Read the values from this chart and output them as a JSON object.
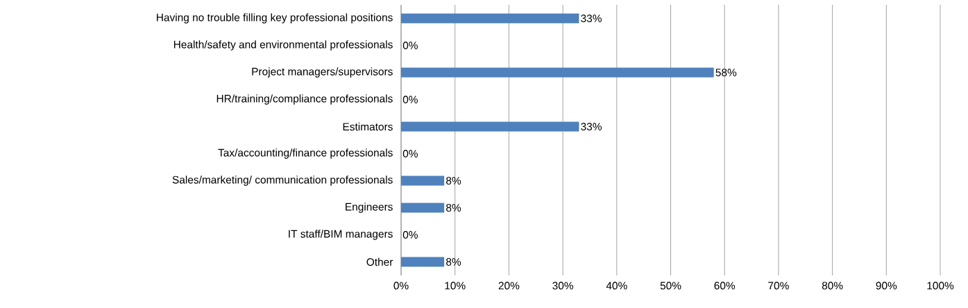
{
  "chart_data": {
    "type": "bar",
    "orientation": "horizontal",
    "categories": [
      "Having no trouble filling key professional positions",
      "Health/safety and environmental professionals",
      "Project managers/supervisors",
      "HR/training/compliance professionals",
      "Estimators",
      "Tax/accounting/finance professionals",
      "Sales/marketing/ communication professionals",
      "Engineers",
      "IT staff/BIM managers",
      "Other"
    ],
    "values": [
      33,
      0,
      58,
      0,
      33,
      0,
      8,
      8,
      0,
      8
    ],
    "value_labels": [
      "33%",
      "0%",
      "58%",
      "0%",
      "33%",
      "0%",
      "8%",
      "8%",
      "0%",
      "8%"
    ],
    "color": "#4f81bd",
    "xlim": [
      0,
      100
    ],
    "xticks": [
      {
        "value": 0,
        "label": "0%"
      },
      {
        "value": 10,
        "label": "10%"
      },
      {
        "value": 20,
        "label": "20%"
      },
      {
        "value": 30,
        "label": "30%"
      },
      {
        "value": 40,
        "label": "40%"
      },
      {
        "value": 50,
        "label": "50%"
      },
      {
        "value": 60,
        "label": "60%"
      },
      {
        "value": 70,
        "label": "70%"
      },
      {
        "value": 80,
        "label": "80%"
      },
      {
        "value": 90,
        "label": "90%"
      },
      {
        "value": 100,
        "label": "100%"
      }
    ],
    "grid": "x"
  }
}
